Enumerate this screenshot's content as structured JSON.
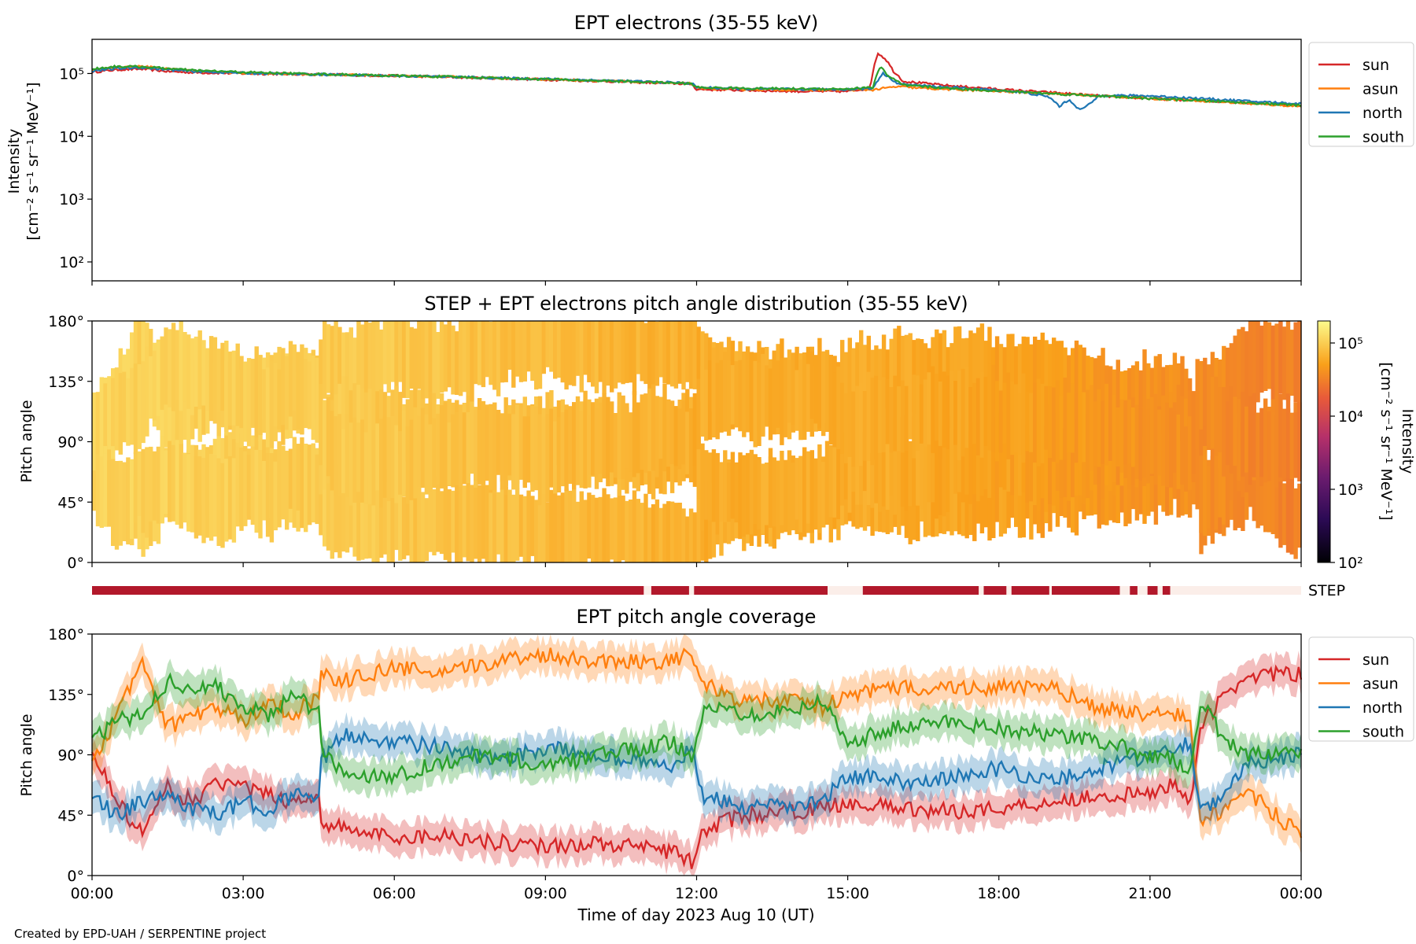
{
  "footer": "Created by EPD-UAH / SERPENTINE project",
  "chart_data": [
    {
      "type": "line",
      "title": "EPT electrons (35-55 keV)",
      "ylabel_line1": "Intensity",
      "ylabel_line2": "[cm⁻² s⁻¹ sr⁻¹ MeV⁻¹]",
      "yscale": "log",
      "ylim": [
        50,
        350000
      ],
      "yticks": [
        {
          "value": 100,
          "label": "10²"
        },
        {
          "value": 1000,
          "label": "10³"
        },
        {
          "value": 10000,
          "label": "10⁴"
        },
        {
          "value": 100000,
          "label": "10⁵"
        }
      ],
      "xlim": [
        0,
        24
      ],
      "x_unit": "hours",
      "legend_placement": "outside-right-top",
      "series": [
        {
          "name": "sun",
          "color": "#d62728",
          "x": [
            0,
            0.5,
            1,
            1.5,
            2,
            3,
            4,
            5,
            6,
            7,
            8,
            9,
            10,
            11,
            11.9,
            12,
            13,
            14,
            15,
            15.45,
            15.6,
            15.75,
            15.9,
            16.1,
            16.5,
            17,
            18,
            19,
            19.5,
            20,
            21,
            22,
            23,
            24
          ],
          "y": [
            105000,
            115000,
            118000,
            108000,
            104000,
            100000,
            98000,
            95000,
            92000,
            88000,
            84000,
            80000,
            76000,
            72000,
            68000,
            56000,
            54000,
            52000,
            52000,
            58000,
            210000,
            170000,
            110000,
            75000,
            70000,
            64000,
            56000,
            50000,
            47000,
            44000,
            40000,
            37000,
            34000,
            31000
          ]
        },
        {
          "name": "asun",
          "color": "#ff7f0e",
          "x": [
            0,
            0.5,
            1,
            1.5,
            2,
            3,
            4,
            5,
            6,
            7,
            8,
            9,
            10,
            11,
            11.9,
            12,
            13,
            14,
            15,
            15.5,
            16,
            16.5,
            17,
            18,
            19,
            20,
            21,
            22,
            23,
            24
          ],
          "y": [
            115000,
            125000,
            130000,
            118000,
            110000,
            102000,
            98000,
            95000,
            92000,
            89000,
            85000,
            81000,
            77000,
            73000,
            69000,
            58000,
            56000,
            55000,
            55000,
            55000,
            62000,
            58000,
            56000,
            52000,
            48000,
            44000,
            40000,
            37000,
            33000,
            30000
          ]
        },
        {
          "name": "north",
          "color": "#1f77b4",
          "x": [
            0,
            0.5,
            1,
            1.5,
            2,
            3,
            4,
            5,
            6,
            7,
            8,
            9,
            10,
            11,
            11.9,
            12,
            13,
            14,
            15,
            15.5,
            15.7,
            16,
            16.5,
            17,
            18,
            18.5,
            19,
            19.2,
            19.4,
            19.6,
            19.8,
            20,
            21,
            22,
            23,
            24
          ],
          "y": [
            110000,
            120000,
            125000,
            115000,
            108000,
            102000,
            98000,
            95000,
            92000,
            89000,
            85000,
            82000,
            78000,
            74000,
            70000,
            60000,
            57000,
            56000,
            56000,
            58000,
            100000,
            68000,
            64000,
            60000,
            54000,
            50000,
            42000,
            30000,
            38000,
            26000,
            32000,
            45000,
            44000,
            40000,
            36000,
            33000
          ]
        },
        {
          "name": "south",
          "color": "#2ca02c",
          "x": [
            0,
            0.5,
            1,
            1.5,
            2,
            3,
            4,
            5,
            6,
            7,
            8,
            9,
            10,
            11,
            11.9,
            12,
            13,
            14,
            15,
            15.5,
            15.65,
            15.8,
            16.1,
            16.5,
            17,
            18,
            19,
            20,
            21,
            22,
            23,
            24
          ],
          "y": [
            118000,
            130000,
            128000,
            120000,
            112000,
            105000,
            100000,
            96000,
            92000,
            89000,
            85000,
            81000,
            77000,
            73000,
            69000,
            60000,
            58000,
            57000,
            57000,
            60000,
            130000,
            90000,
            65000,
            62000,
            58000,
            53000,
            48000,
            44000,
            40000,
            37000,
            34000,
            31000
          ]
        }
      ]
    },
    {
      "type": "heatmap",
      "title": "STEP + EPT electrons pitch angle distribution (35-55 keV)",
      "ylabel": "Pitch angle",
      "ylim": [
        0,
        180
      ],
      "yticks": [
        "0°",
        "45°",
        "90°",
        "135°",
        "180°"
      ],
      "colorbar": {
        "scale": "log",
        "range": [
          100,
          200000
        ],
        "ticks": [
          {
            "value": 100,
            "label": "10²"
          },
          {
            "value": 1000,
            "label": "10³"
          },
          {
            "value": 10000,
            "label": "10⁴"
          },
          {
            "value": 100000,
            "label": "10⁵"
          }
        ],
        "label": "Intensity\n[cm⁻² s⁻¹ sr⁻¹ MeV⁻¹]",
        "colormap": "inferno-like"
      },
      "intensity_trend": {
        "x": [
          0,
          6,
          12,
          15.5,
          18,
          24
        ],
        "y": [
          110000,
          92000,
          62000,
          60000,
          52000,
          31000
        ]
      }
    },
    {
      "type": "bar",
      "name": "STEP",
      "label": "STEP",
      "xlim": [
        0,
        24
      ],
      "active_intervals": [
        [
          0,
          10.95
        ],
        [
          11.1,
          11.85
        ],
        [
          11.95,
          14.6
        ],
        [
          15.3,
          17.6
        ],
        [
          17.7,
          18.15
        ],
        [
          18.25,
          19.0
        ],
        [
          19.05,
          20.4
        ],
        [
          20.6,
          20.75
        ],
        [
          20.95,
          21.15
        ],
        [
          21.25,
          21.4
        ]
      ],
      "active_color": "#b2182b",
      "inactive_color": "#fbeee9"
    },
    {
      "type": "line",
      "title": "EPT pitch angle coverage",
      "ylabel": "Pitch angle",
      "ylim": [
        0,
        180
      ],
      "yticks": [
        "0°",
        "45°",
        "90°",
        "135°",
        "180°"
      ],
      "xlim": [
        0,
        24
      ],
      "xticks": [
        "00:00",
        "03:00",
        "06:00",
        "09:00",
        "12:00",
        "15:00",
        "18:00",
        "21:00",
        "00:00"
      ],
      "xlabel": "Time of day 2023 Aug 10 (UT)",
      "legend_placement": "outside-right-top",
      "band_halfwidth_deg": 12,
      "series": [
        {
          "name": "sun",
          "color": "#d62728",
          "x": [
            0,
            0.5,
            1,
            1.5,
            2,
            2.5,
            3,
            3.5,
            4,
            4.5,
            4.55,
            5,
            6,
            7,
            8,
            9,
            10,
            11,
            11.5,
            11.9,
            12.1,
            12.5,
            13,
            14,
            14.5,
            15,
            16,
            17,
            18,
            19,
            20,
            21,
            21.5,
            21.8,
            22,
            22.5,
            23,
            24
          ],
          "y": [
            95,
            55,
            30,
            65,
            55,
            70,
            65,
            60,
            55,
            60,
            40,
            35,
            28,
            30,
            25,
            22,
            24,
            20,
            18,
            10,
            30,
            40,
            45,
            48,
            50,
            55,
            50,
            48,
            50,
            55,
            60,
            60,
            70,
            55,
            110,
            135,
            150,
            150
          ]
        },
        {
          "name": "asun",
          "color": "#ff7f0e",
          "x": [
            0,
            0.5,
            1,
            1.5,
            2,
            2.5,
            3,
            3.5,
            4,
            4.5,
            4.55,
            5,
            6,
            7,
            8,
            9,
            10,
            11,
            11.5,
            11.9,
            12.1,
            12.5,
            13,
            14,
            14.5,
            15,
            16,
            17,
            18,
            19,
            20,
            21,
            21.5,
            21.8,
            22,
            22.5,
            23,
            24
          ],
          "y": [
            80,
            120,
            160,
            110,
            120,
            125,
            115,
            130,
            120,
            135,
            150,
            145,
            155,
            150,
            160,
            165,
            160,
            160,
            160,
            165,
            145,
            135,
            130,
            130,
            125,
            135,
            140,
            140,
            140,
            140,
            125,
            120,
            120,
            115,
            40,
            50,
            60,
            30
          ]
        },
        {
          "name": "north",
          "color": "#1f77b4",
          "x": [
            0,
            0.5,
            1,
            1.5,
            2,
            2.5,
            3,
            3.5,
            4,
            4.5,
            4.55,
            5,
            6,
            7,
            8,
            9,
            10,
            11,
            11.5,
            11.9,
            12.1,
            12.5,
            13,
            14,
            14.5,
            15,
            16,
            17,
            18,
            19,
            20,
            21,
            21.5,
            21.8,
            22,
            22.5,
            23,
            24
          ],
          "y": [
            60,
            45,
            55,
            60,
            50,
            45,
            55,
            50,
            60,
            55,
            85,
            105,
            100,
            95,
            85,
            95,
            90,
            85,
            80,
            95,
            60,
            55,
            50,
            52,
            55,
            75,
            70,
            72,
            80,
            70,
            80,
            90,
            95,
            100,
            50,
            60,
            85,
            90
          ]
        },
        {
          "name": "south",
          "color": "#2ca02c",
          "x": [
            0,
            0.5,
            1,
            1.5,
            2,
            2.5,
            3,
            3.5,
            4,
            4.5,
            4.55,
            5,
            6,
            7,
            8,
            9,
            10,
            11,
            11.5,
            11.9,
            12.1,
            12.5,
            13,
            14,
            14.5,
            15,
            16,
            17,
            18,
            19,
            20,
            21,
            21.5,
            21.8,
            22,
            22.5,
            23,
            24
          ],
          "y": [
            100,
            115,
            120,
            145,
            140,
            140,
            125,
            120,
            135,
            120,
            95,
            75,
            75,
            85,
            90,
            80,
            90,
            95,
            100,
            90,
            120,
            125,
            120,
            125,
            130,
            100,
            110,
            115,
            110,
            105,
            100,
            90,
            85,
            80,
            130,
            100,
            90,
            90
          ]
        }
      ]
    }
  ]
}
